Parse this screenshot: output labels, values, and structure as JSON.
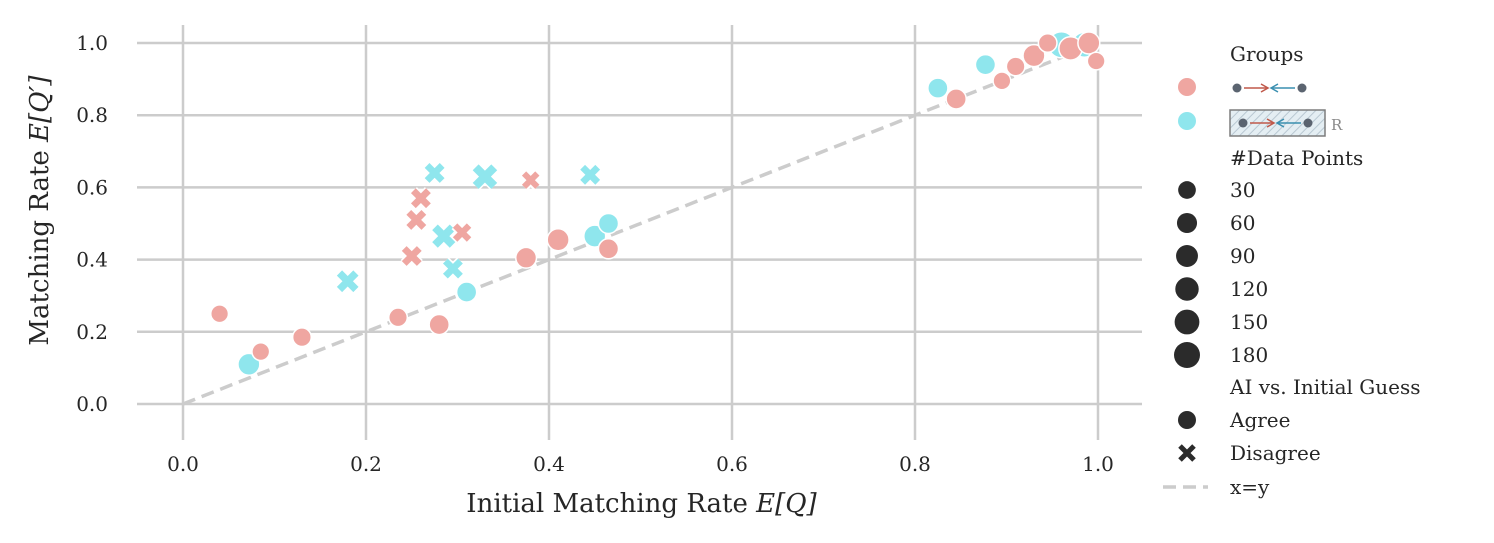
{
  "chart_data": {
    "type": "scatter",
    "xlabel": "Initial Matching Rate E[Q]",
    "ylabel": "Matching Rate E[Q′]",
    "xlabel_main": "Initial Matching Rate ",
    "xlabel_math": "E[Q]",
    "ylabel_main": "Matching Rate ",
    "ylabel_math": "E[Q′]",
    "xlim": [
      -0.05,
      1.05
    ],
    "ylim": [
      -0.1,
      1.05
    ],
    "x_ticks": [
      0.0,
      0.2,
      0.4,
      0.6,
      0.8,
      1.0
    ],
    "y_ticks": [
      0.0,
      0.2,
      0.4,
      0.6,
      0.8,
      1.0
    ],
    "x_tick_labels": [
      "0.0",
      "0.2",
      "0.4",
      "0.6",
      "0.8",
      "1.0"
    ],
    "y_tick_labels": [
      "0.0",
      "0.2",
      "0.4",
      "0.6",
      "0.8",
      "1.0"
    ],
    "grid": true,
    "colors": {
      "pink": "#efa6a1",
      "cyan": "#8fe6ed",
      "ref_line": "#cccccc",
      "grid": "#cccccc"
    },
    "series": [
      {
        "name": "pink group",
        "color": "#efa6a1",
        "points": [
          {
            "x": 0.04,
            "y": 0.25,
            "n": 30,
            "agree": true
          },
          {
            "x": 0.085,
            "y": 0.145,
            "n": 30,
            "agree": true
          },
          {
            "x": 0.13,
            "y": 0.185,
            "n": 40,
            "agree": true
          },
          {
            "x": 0.235,
            "y": 0.24,
            "n": 40,
            "agree": true
          },
          {
            "x": 0.28,
            "y": 0.22,
            "n": 60,
            "agree": true
          },
          {
            "x": 0.375,
            "y": 0.405,
            "n": 70,
            "agree": true
          },
          {
            "x": 0.41,
            "y": 0.455,
            "n": 90,
            "agree": true
          },
          {
            "x": 0.465,
            "y": 0.43,
            "n": 60,
            "agree": true
          },
          {
            "x": 0.845,
            "y": 0.845,
            "n": 60,
            "agree": true
          },
          {
            "x": 0.895,
            "y": 0.895,
            "n": 30,
            "agree": true
          },
          {
            "x": 0.91,
            "y": 0.935,
            "n": 40,
            "agree": true
          },
          {
            "x": 0.93,
            "y": 0.965,
            "n": 90,
            "agree": true
          },
          {
            "x": 0.945,
            "y": 1.0,
            "n": 40,
            "agree": true
          },
          {
            "x": 0.97,
            "y": 0.985,
            "n": 120,
            "agree": true
          },
          {
            "x": 0.99,
            "y": 1.0,
            "n": 90,
            "agree": true
          },
          {
            "x": 0.998,
            "y": 0.95,
            "n": 30,
            "agree": true
          },
          {
            "x": 0.25,
            "y": 0.41,
            "n": 60,
            "agree": false
          },
          {
            "x": 0.255,
            "y": 0.51,
            "n": 60,
            "agree": false
          },
          {
            "x": 0.26,
            "y": 0.57,
            "n": 60,
            "agree": false
          },
          {
            "x": 0.305,
            "y": 0.475,
            "n": 40,
            "agree": false
          },
          {
            "x": 0.38,
            "y": 0.62,
            "n": 30,
            "agree": false
          }
        ]
      },
      {
        "name": "cyan group (hatched, R)",
        "color": "#8fe6ed",
        "points": [
          {
            "x": 0.072,
            "y": 0.11,
            "n": 90,
            "agree": true
          },
          {
            "x": 0.31,
            "y": 0.31,
            "n": 60,
            "agree": true
          },
          {
            "x": 0.45,
            "y": 0.465,
            "n": 90,
            "agree": true
          },
          {
            "x": 0.465,
            "y": 0.5,
            "n": 60,
            "agree": true
          },
          {
            "x": 0.825,
            "y": 0.875,
            "n": 60,
            "agree": true
          },
          {
            "x": 0.877,
            "y": 0.94,
            "n": 60,
            "agree": true
          },
          {
            "x": 0.96,
            "y": 0.995,
            "n": 180,
            "agree": true
          },
          {
            "x": 0.985,
            "y": 0.995,
            "n": 150,
            "agree": true
          },
          {
            "x": 0.18,
            "y": 0.34,
            "n": 90,
            "agree": false
          },
          {
            "x": 0.275,
            "y": 0.64,
            "n": 60,
            "agree": false
          },
          {
            "x": 0.285,
            "y": 0.465,
            "n": 120,
            "agree": false
          },
          {
            "x": 0.295,
            "y": 0.375,
            "n": 60,
            "agree": false
          },
          {
            "x": 0.33,
            "y": 0.63,
            "n": 150,
            "agree": false
          },
          {
            "x": 0.445,
            "y": 0.635,
            "n": 60,
            "agree": false
          }
        ]
      }
    ],
    "reference_line": {
      "label": "x=y",
      "style": "dashed"
    },
    "legend": {
      "placement": "right",
      "groups_title": "Groups",
      "group_marker_label": "R",
      "size_title": "#Data Points",
      "sizes": [
        30,
        60,
        90,
        120,
        150,
        180
      ],
      "size_labels": [
        "30",
        "60",
        "90",
        "120",
        "150",
        "180"
      ],
      "marker_title": "AI vs. Initial Guess",
      "agree_label": "Agree",
      "disagree_label": "Disagree",
      "line_label": "x=y"
    }
  }
}
